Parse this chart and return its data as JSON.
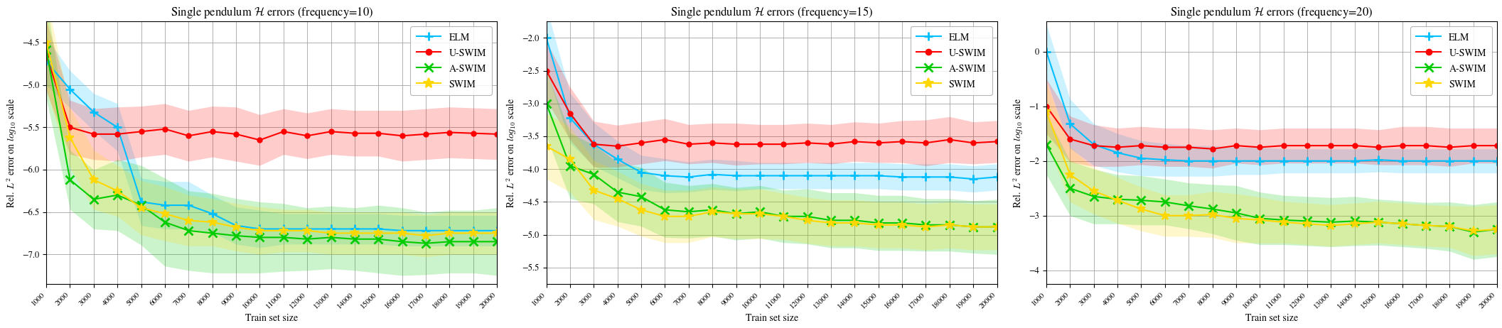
{
  "x": [
    1000,
    2000,
    3000,
    4000,
    5000,
    6000,
    7000,
    8000,
    9000,
    10000,
    11000,
    12000,
    13000,
    14000,
    15000,
    16000,
    17000,
    18000,
    19000,
    20000
  ],
  "panels": [
    {
      "title": "Single pendulum $\\mathcal{H}$ errors (frequency=10)",
      "ylabel": "Rel. $L^2$ error on $log_{10}$ scale",
      "xlabel": "Train set size",
      "ylim": [
        -7.35,
        -4.25
      ],
      "yticks": [
        -7.0,
        -6.5,
        -6.0,
        -5.5,
        -5.0,
        -4.5
      ],
      "ELM_mean": [
        -4.72,
        -5.05,
        -5.32,
        -5.5,
        -6.38,
        -6.42,
        -6.42,
        -6.52,
        -6.66,
        -6.7,
        -6.7,
        -6.7,
        -6.7,
        -6.7,
        -6.7,
        -6.72,
        -6.72,
        -6.72,
        -6.72,
        -6.72
      ],
      "ELM_std": [
        0.28,
        0.22,
        0.22,
        0.28,
        0.28,
        0.28,
        0.28,
        0.22,
        0.22,
        0.22,
        0.18,
        0.18,
        0.18,
        0.18,
        0.18,
        0.18,
        0.18,
        0.18,
        0.18,
        0.18
      ],
      "USWIM_mean": [
        -4.65,
        -5.5,
        -5.58,
        -5.58,
        -5.55,
        -5.52,
        -5.6,
        -5.55,
        -5.58,
        -5.65,
        -5.55,
        -5.6,
        -5.55,
        -5.57,
        -5.57,
        -5.6,
        -5.58,
        -5.56,
        -5.57,
        -5.58
      ],
      "USWIM_std": [
        0.42,
        0.32,
        0.3,
        0.32,
        0.3,
        0.3,
        0.3,
        0.3,
        0.32,
        0.3,
        0.27,
        0.27,
        0.27,
        0.27,
        0.27,
        0.3,
        0.3,
        0.3,
        0.3,
        0.3
      ],
      "ASWIM_mean": [
        -4.58,
        -6.12,
        -6.35,
        -6.3,
        -6.42,
        -6.62,
        -6.72,
        -6.75,
        -6.78,
        -6.8,
        -6.8,
        -6.82,
        -6.8,
        -6.82,
        -6.82,
        -6.85,
        -6.87,
        -6.85,
        -6.85,
        -6.85
      ],
      "ASWIM_std": [
        0.58,
        0.35,
        0.35,
        0.42,
        0.47,
        0.52,
        0.47,
        0.47,
        0.44,
        0.42,
        0.4,
        0.37,
        0.37,
        0.37,
        0.4,
        0.4,
        0.37,
        0.37,
        0.37,
        0.4
      ],
      "SWIM_mean": [
        -4.5,
        -5.62,
        -6.12,
        -6.25,
        -6.45,
        -6.52,
        -6.6,
        -6.62,
        -6.68,
        -6.72,
        -6.72,
        -6.72,
        -6.75,
        -6.75,
        -6.75,
        -6.75,
        -6.78,
        -6.75,
        -6.75,
        -6.75
      ],
      "SWIM_std": [
        0.55,
        0.35,
        0.35,
        0.3,
        0.32,
        0.32,
        0.3,
        0.28,
        0.28,
        0.28,
        0.25,
        0.25,
        0.25,
        0.25,
        0.25,
        0.25,
        0.25,
        0.25,
        0.25,
        0.25
      ]
    },
    {
      "title": "Single pendulum $\\mathcal{H}$ errors (frequency=15)",
      "ylabel": "Rel. $L^2$ error on $log_{10}$ scale",
      "xlabel": "Train set size",
      "ylim": [
        -5.75,
        -1.75
      ],
      "yticks": [
        -5.5,
        -5.0,
        -4.5,
        -4.0,
        -3.5,
        -3.0,
        -2.5,
        -2.0
      ],
      "ELM_mean": [
        -2.0,
        -3.22,
        -3.62,
        -3.85,
        -4.05,
        -4.1,
        -4.12,
        -4.08,
        -4.1,
        -4.1,
        -4.1,
        -4.1,
        -4.1,
        -4.1,
        -4.1,
        -4.12,
        -4.12,
        -4.12,
        -4.15,
        -4.12
      ],
      "ELM_std": [
        0.48,
        0.38,
        0.33,
        0.28,
        0.26,
        0.26,
        0.23,
        0.23,
        0.23,
        0.2,
        0.2,
        0.2,
        0.2,
        0.2,
        0.2,
        0.2,
        0.2,
        0.2,
        0.2,
        0.2
      ],
      "USWIM_mean": [
        -2.5,
        -3.15,
        -3.62,
        -3.65,
        -3.6,
        -3.55,
        -3.62,
        -3.6,
        -3.62,
        -3.62,
        -3.62,
        -3.6,
        -3.62,
        -3.58,
        -3.6,
        -3.58,
        -3.6,
        -3.55,
        -3.6,
        -3.58
      ],
      "USWIM_std": [
        0.45,
        0.4,
        0.35,
        0.32,
        0.32,
        0.32,
        0.3,
        0.3,
        0.32,
        0.3,
        0.3,
        0.3,
        0.3,
        0.3,
        0.3,
        0.32,
        0.35,
        0.35,
        0.32,
        0.32
      ],
      "ASWIM_mean": [
        -3.0,
        -3.95,
        -4.08,
        -4.35,
        -4.42,
        -4.62,
        -4.65,
        -4.62,
        -4.68,
        -4.65,
        -4.72,
        -4.72,
        -4.78,
        -4.78,
        -4.82,
        -4.82,
        -4.85,
        -4.85,
        -4.88,
        -4.88
      ],
      "ASWIM_std": [
        0.5,
        0.5,
        0.45,
        0.45,
        0.45,
        0.42,
        0.4,
        0.4,
        0.4,
        0.4,
        0.4,
        0.42,
        0.42,
        0.42,
        0.42,
        0.42,
        0.4,
        0.4,
        0.4,
        0.42
      ],
      "SWIM_mean": [
        -3.65,
        -3.85,
        -4.32,
        -4.45,
        -4.62,
        -4.72,
        -4.72,
        -4.65,
        -4.68,
        -4.68,
        -4.72,
        -4.78,
        -4.82,
        -4.82,
        -4.85,
        -4.85,
        -4.88,
        -4.85,
        -4.88,
        -4.88
      ],
      "SWIM_std": [
        0.5,
        0.5,
        0.45,
        0.42,
        0.4,
        0.4,
        0.4,
        0.38,
        0.38,
        0.38,
        0.35,
        0.35,
        0.35,
        0.35,
        0.35,
        0.35,
        0.35,
        0.35,
        0.35,
        0.35
      ]
    },
    {
      "title": "Single pendulum $\\mathcal{H}$ errors (frequency=20)",
      "ylabel": "Rel. $L^2$ error on $log_{10}$ scale",
      "xlabel": "Train set size",
      "ylim": [
        -4.25,
        0.55
      ],
      "yticks": [
        -4.0,
        -3.0,
        -2.0,
        -1.0,
        0.0
      ],
      "ELM_mean": [
        0.0,
        -1.32,
        -1.7,
        -1.85,
        -1.95,
        -1.98,
        -2.0,
        -2.0,
        -2.0,
        -2.0,
        -2.0,
        -2.0,
        -2.0,
        -2.0,
        -1.98,
        -2.0,
        -2.0,
        -2.0,
        -2.0,
        -2.0
      ],
      "ELM_std": [
        0.5,
        0.45,
        0.38,
        0.35,
        0.32,
        0.3,
        0.28,
        0.28,
        0.25,
        0.25,
        0.22,
        0.22,
        0.22,
        0.22,
        0.22,
        0.22,
        0.22,
        0.22,
        0.22,
        0.22
      ],
      "USWIM_mean": [
        -1.0,
        -1.6,
        -1.72,
        -1.75,
        -1.72,
        -1.75,
        -1.75,
        -1.78,
        -1.72,
        -1.75,
        -1.72,
        -1.72,
        -1.72,
        -1.72,
        -1.75,
        -1.72,
        -1.72,
        -1.75,
        -1.72,
        -1.72
      ],
      "USWIM_std": [
        0.5,
        0.42,
        0.38,
        0.35,
        0.35,
        0.35,
        0.35,
        0.35,
        0.32,
        0.32,
        0.32,
        0.32,
        0.32,
        0.32,
        0.32,
        0.35,
        0.35,
        0.35,
        0.32,
        0.32
      ],
      "ASWIM_mean": [
        -1.7,
        -2.5,
        -2.65,
        -2.7,
        -2.72,
        -2.75,
        -2.82,
        -2.88,
        -2.95,
        -3.05,
        -3.08,
        -3.1,
        -3.12,
        -3.1,
        -3.12,
        -3.15,
        -3.18,
        -3.2,
        -3.3,
        -3.25
      ],
      "ASWIM_std": [
        0.55,
        0.5,
        0.5,
        0.45,
        0.45,
        0.42,
        0.42,
        0.45,
        0.5,
        0.48,
        0.45,
        0.45,
        0.45,
        0.45,
        0.42,
        0.42,
        0.42,
        0.45,
        0.5,
        0.5
      ],
      "SWIM_mean": [
        -1.1,
        -2.25,
        -2.55,
        -2.72,
        -2.88,
        -3.0,
        -3.0,
        -2.98,
        -3.05,
        -3.08,
        -3.12,
        -3.15,
        -3.18,
        -3.15,
        -3.12,
        -3.15,
        -3.18,
        -3.2,
        -3.28,
        -3.25
      ],
      "SWIM_std": [
        0.55,
        0.5,
        0.42,
        0.42,
        0.4,
        0.38,
        0.38,
        0.42,
        0.45,
        0.42,
        0.38,
        0.38,
        0.38,
        0.38,
        0.38,
        0.38,
        0.38,
        0.38,
        0.45,
        0.45
      ]
    }
  ],
  "colors": {
    "ELM": "#00BFFF",
    "U-SWIM": "#FF0000",
    "A-SWIM": "#00CC00",
    "SWIM": "#FFD700"
  },
  "markers": {
    "ELM": "+",
    "U-SWIM": "o",
    "A-SWIM": "x",
    "SWIM": "*"
  },
  "legend_fontsize": 10,
  "title_fontsize": 12,
  "label_fontsize": 10,
  "tick_fontsize": 8
}
